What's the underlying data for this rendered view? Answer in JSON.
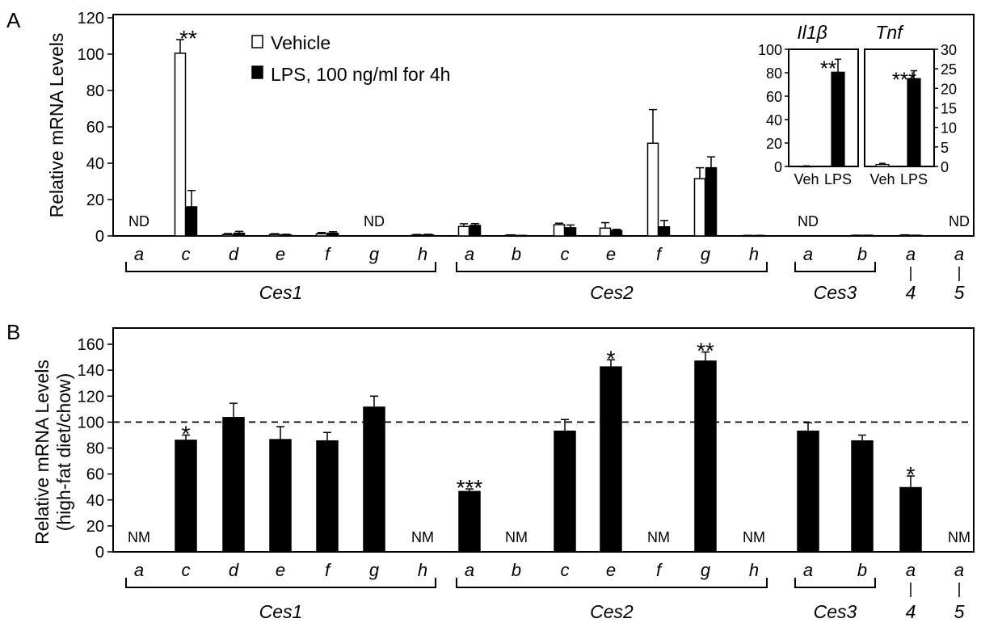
{
  "panels": {
    "A": "A",
    "B": "B"
  },
  "chart_data": [
    {
      "type": "bar",
      "title": "",
      "ylabel": "Relative mRNA Levels",
      "ylim": [
        0,
        120
      ],
      "yticks": [
        0,
        20,
        40,
        60,
        80,
        100,
        120
      ],
      "legend": {
        "placement": "top-left",
        "entries": [
          "Vehicle",
          "LPS, 100 ng/ml for 4h"
        ]
      },
      "groups": [
        {
          "name": "Ces1",
          "categories": [
            "a",
            "c",
            "d",
            "e",
            "f",
            "g",
            "h"
          ]
        },
        {
          "name": "Ces2",
          "categories": [
            "a",
            "b",
            "c",
            "e",
            "f",
            "g",
            "h"
          ]
        },
        {
          "name": "Ces3",
          "categories": [
            "a",
            "b"
          ]
        },
        {
          "name": "4",
          "categories": [
            "a"
          ]
        },
        {
          "name": "5",
          "categories": [
            "a"
          ]
        }
      ],
      "series": [
        {
          "name": "Vehicle",
          "color": "#ffffff",
          "values": [
            null,
            100.5,
            0.8,
            0.8,
            1.2,
            null,
            0.5,
            5.2,
            0.4,
            6.2,
            4.3,
            51,
            31.5,
            0.2,
            null,
            0.3,
            0.4,
            null
          ],
          "errors": [
            0,
            7.5,
            0.5,
            0.4,
            0.7,
            0,
            0.3,
            1.5,
            0.2,
            0.8,
            3,
            18.5,
            6,
            0.1,
            0,
            0.1,
            0.2,
            0
          ]
        },
        {
          "name": "LPS",
          "color": "#000000",
          "values": [
            null,
            16,
            1.5,
            0.6,
            1.5,
            null,
            0.6,
            5.8,
            0.2,
            4.5,
            3,
            5,
            37.5,
            0.2,
            null,
            0.3,
            0.3,
            null
          ],
          "errors": [
            0,
            9,
            1,
            0.3,
            0.8,
            0,
            0.3,
            1,
            0.1,
            1.5,
            0.6,
            3.5,
            6,
            0.1,
            0,
            0.1,
            0.1,
            0
          ]
        }
      ],
      "annotations": [
        {
          "category_index": 1,
          "text": "**"
        }
      ],
      "nd_labels": [
        {
          "category_index": 0,
          "text": "ND"
        },
        {
          "category_index": 5,
          "text": "ND"
        },
        {
          "category_index": 14,
          "text": "ND"
        },
        {
          "category_index": 17,
          "text": "ND"
        }
      ],
      "insets": [
        {
          "title_main": "Il1",
          "title_greek": "β",
          "axis_side": "left",
          "ylim": [
            0,
            100
          ],
          "yticks": [
            0,
            20,
            40,
            60,
            80,
            100
          ],
          "categories": [
            "Veh",
            "LPS"
          ],
          "values": [
            0.3,
            80.5
          ],
          "errors": [
            0.2,
            11
          ],
          "colors": [
            "#ffffff",
            "#000000"
          ],
          "annotation": "**"
        },
        {
          "title_main": "Tnf",
          "title_greek": "",
          "axis_side": "right",
          "ylim": [
            0,
            30
          ],
          "yticks": [
            0,
            5,
            10,
            15,
            20,
            25,
            30
          ],
          "categories": [
            "Veh",
            "LPS"
          ],
          "values": [
            0.5,
            22.5
          ],
          "errors": [
            0.3,
            2
          ],
          "colors": [
            "#ffffff",
            "#000000"
          ],
          "annotation": "***"
        }
      ]
    },
    {
      "type": "bar",
      "title": "",
      "ylabel_lines": [
        "Relative mRNA Levels",
        "(high-fat diet/chow)"
      ],
      "ylim": [
        0,
        170
      ],
      "yticks": [
        0,
        20,
        40,
        60,
        80,
        100,
        120,
        140,
        160
      ],
      "reference_line": 100,
      "groups": [
        {
          "name": "Ces1",
          "categories": [
            "a",
            "c",
            "d",
            "e",
            "f",
            "g",
            "h"
          ]
        },
        {
          "name": "Ces2",
          "categories": [
            "a",
            "b",
            "c",
            "e",
            "f",
            "g",
            "h"
          ]
        },
        {
          "name": "Ces3",
          "categories": [
            "a",
            "b"
          ]
        },
        {
          "name": "4",
          "categories": [
            "a"
          ]
        },
        {
          "name": "5",
          "categories": [
            "a"
          ]
        }
      ],
      "series": [
        {
          "name": "",
          "color": "#000000",
          "values": [
            null,
            86,
            103.5,
            86.5,
            85.5,
            111.5,
            null,
            46.5,
            null,
            93,
            142.5,
            null,
            147,
            null,
            93,
            85.5,
            49.5,
            null
          ],
          "errors": [
            0,
            4,
            11,
            10,
            6.5,
            8.5,
            0,
            2,
            0,
            9,
            5.5,
            0,
            7,
            0,
            6.5,
            4.5,
            9,
            0
          ]
        }
      ],
      "annotations": [
        {
          "category_index": 1,
          "text": "*"
        },
        {
          "category_index": 7,
          "text": "***"
        },
        {
          "category_index": 10,
          "text": "*"
        },
        {
          "category_index": 12,
          "text": "**"
        },
        {
          "category_index": 16,
          "text": "*"
        }
      ],
      "nm_labels": [
        {
          "category_index": 0,
          "text": "NM"
        },
        {
          "category_index": 6,
          "text": "NM"
        },
        {
          "category_index": 8,
          "text": "NM"
        },
        {
          "category_index": 11,
          "text": "NM"
        },
        {
          "category_index": 13,
          "text": "NM"
        },
        {
          "category_index": 17,
          "text": "NM"
        }
      ]
    }
  ]
}
